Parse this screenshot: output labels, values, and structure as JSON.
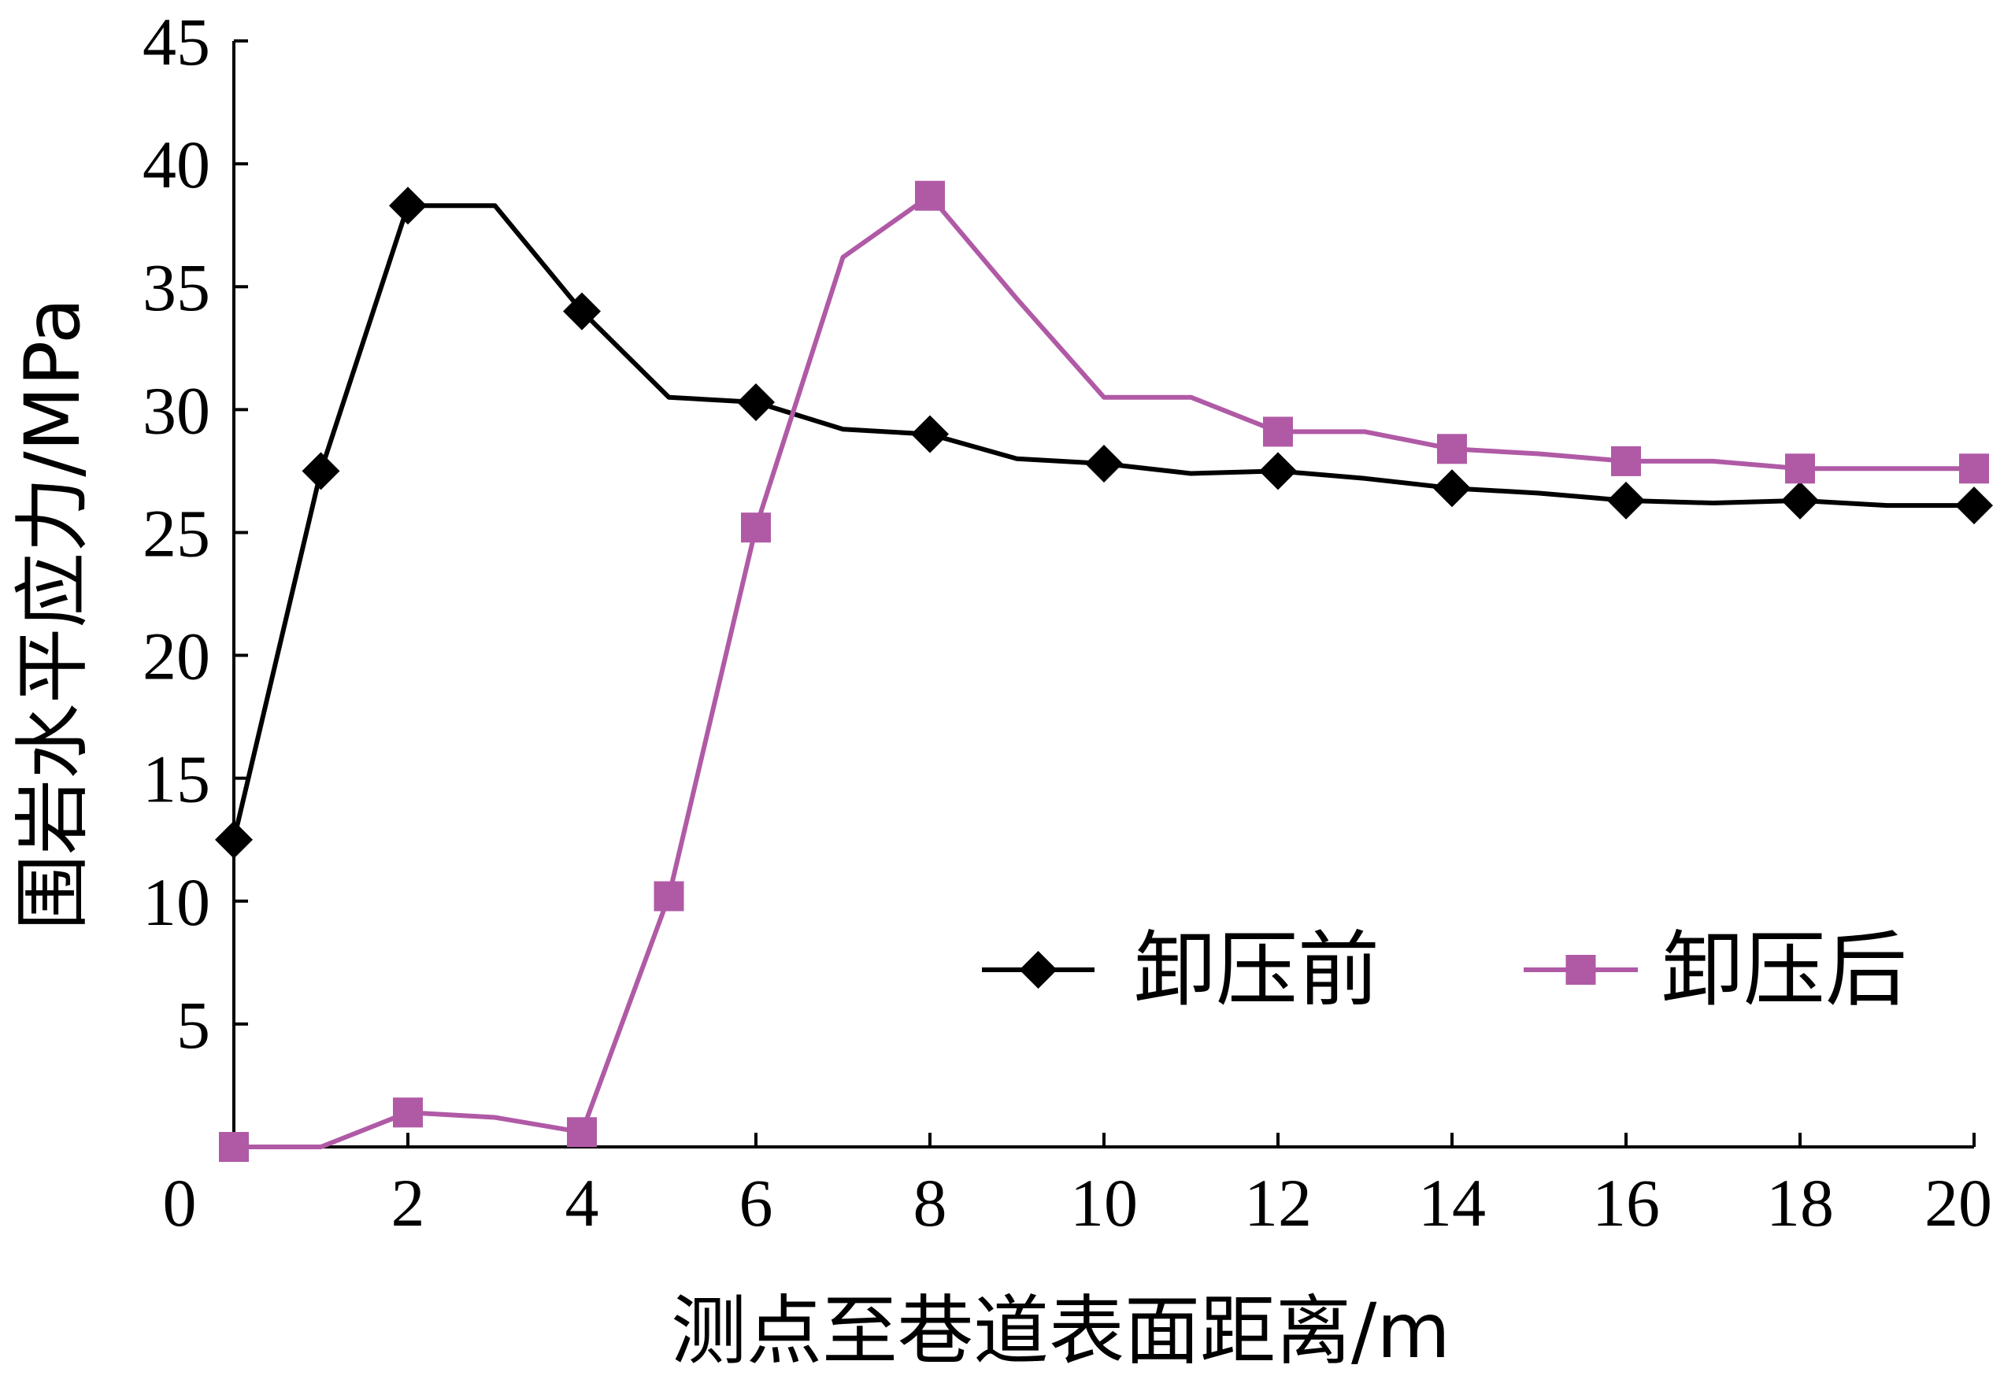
{
  "chart_data": {
    "type": "line",
    "title": "",
    "xlabel": "测点至巷道表面距离/m",
    "ylabel": "围岩水平应力/MPa",
    "xlim": [
      0,
      20
    ],
    "ylim": [
      0,
      45
    ],
    "xticks": [
      "0",
      "2",
      "4",
      "6",
      "8",
      "10",
      "12",
      "14",
      "16",
      "18",
      "20"
    ],
    "yticks": [
      "5",
      "10",
      "15",
      "20",
      "25",
      "30",
      "35",
      "40",
      "45"
    ],
    "ytick_values": [
      5,
      10,
      15,
      20,
      25,
      30,
      35,
      40,
      45
    ],
    "grid": false,
    "legend_position": "bottom-right",
    "series": [
      {
        "name": "卸压前",
        "color": "#000000",
        "marker": "diamond",
        "x": [
          0,
          1,
          2,
          3,
          4,
          5,
          6,
          7,
          8,
          9,
          10,
          11,
          12,
          13,
          14,
          15,
          16,
          17,
          18,
          19,
          20
        ],
        "y": [
          12.5,
          27.5,
          38.3,
          38.3,
          34.0,
          30.5,
          30.3,
          29.2,
          29.0,
          28.0,
          27.8,
          27.4,
          27.5,
          27.2,
          26.8,
          26.6,
          26.3,
          26.2,
          26.3,
          26.1,
          26.1
        ],
        "marker_x": [
          0,
          1,
          2,
          4,
          6,
          8,
          10,
          12,
          14,
          16,
          18,
          20
        ]
      },
      {
        "name": "卸压后",
        "color": "#b05aa6",
        "marker": "square",
        "x": [
          0,
          1,
          2,
          3,
          4,
          5,
          6,
          7,
          8,
          9,
          10,
          11,
          12,
          13,
          14,
          15,
          16,
          17,
          18,
          19,
          20
        ],
        "y": [
          0.0,
          0.0,
          1.4,
          1.2,
          0.6,
          10.2,
          25.2,
          36.2,
          38.7,
          34.5,
          30.5,
          30.5,
          29.1,
          29.1,
          28.4,
          28.2,
          27.9,
          27.9,
          27.6,
          27.6,
          27.6
        ],
        "marker_x": [
          0,
          2,
          4,
          5,
          6,
          8,
          12,
          14,
          16,
          18,
          20
        ]
      }
    ]
  }
}
